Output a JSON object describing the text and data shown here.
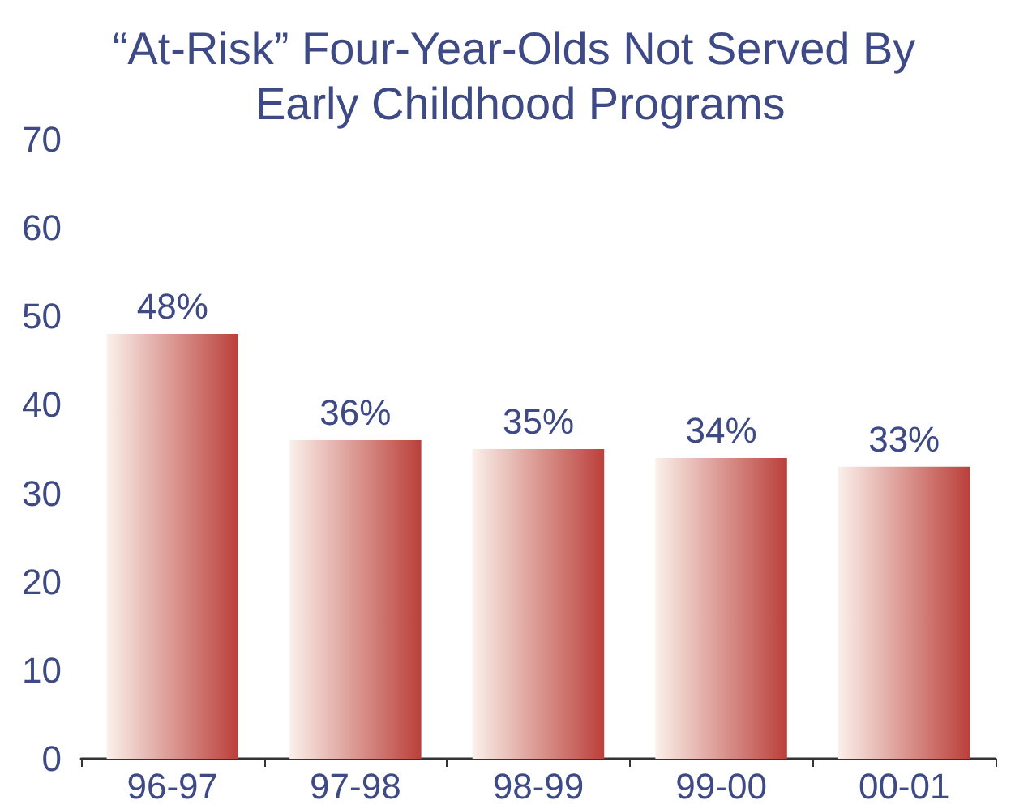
{
  "chart_data": {
    "type": "bar",
    "title": "“At-Risk” Four-Year-Olds Not Served By Early Childhood Programs",
    "categories": [
      "96-97",
      "97-98",
      "98-99",
      "99-00",
      "00-01"
    ],
    "values": [
      48,
      36,
      35,
      34,
      33
    ],
    "value_labels": [
      "48%",
      "36%",
      "35%",
      "34%",
      "33%"
    ],
    "color": "#bb3f3a",
    "ylim": [
      0,
      70
    ],
    "yticks": [
      0,
      10,
      20,
      30,
      40,
      50,
      60,
      70
    ]
  }
}
